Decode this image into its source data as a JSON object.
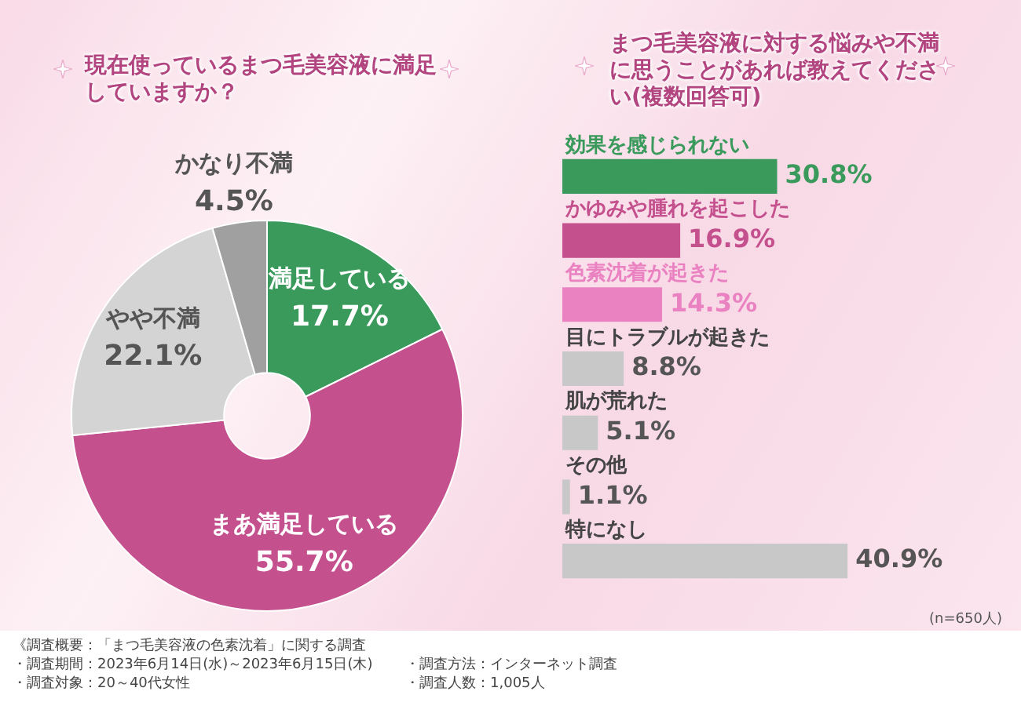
{
  "chart_data": [
    {
      "type": "donut",
      "title": "現在使っているまつ毛美容液に満足していますか？",
      "categories": [
        "満足している",
        "まあ満足している",
        "やや不満",
        "かなり不満"
      ],
      "values": [
        17.7,
        55.7,
        22.1,
        4.5
      ],
      "colors": [
        "#3a9a5c",
        "#c4508e",
        "#d4d4d4",
        "#a0a0a0"
      ],
      "value_labels": [
        "17.7%",
        "55.7%",
        "22.1%",
        "4.5%"
      ],
      "legend": false,
      "annotations": [
        "《調査概要：「まつ毛美容液の色素沈着」に関する調査",
        "・調査期間：2023年6月14日(水)～2023年6月15日(木)",
        "・調査方法：インターネット調査",
        "・調査対象：20～40代女性",
        "・調査人数：1,005人"
      ]
    },
    {
      "type": "bar",
      "orientation": "horizontal",
      "title": "まつ毛美容液に対する悩みや不満に思うことがあれば教えてください(複数回答可)",
      "categories": [
        "効果を感じられない",
        "かゆみや腫れを起こした",
        "色素沈着が起きた",
        "目にトラブルが起きた",
        "肌が荒れた",
        "その他",
        "特になし"
      ],
      "values": [
        30.8,
        16.9,
        14.3,
        8.8,
        5.1,
        1.1,
        40.9
      ],
      "colors": [
        "#3a9a5c",
        "#c4508e",
        "#ea82c2",
        "#c8c8c8",
        "#c8c8c8",
        "#c8c8c8",
        "#c8c8c8"
      ],
      "value_labels": [
        "30.8%",
        "16.9%",
        "14.3%",
        "8.8%",
        "5.1%",
        "1.1%",
        "40.9%"
      ],
      "legend": false,
      "tick_labels": false,
      "annotations": [
        "(n=650人)"
      ]
    }
  ]
}
